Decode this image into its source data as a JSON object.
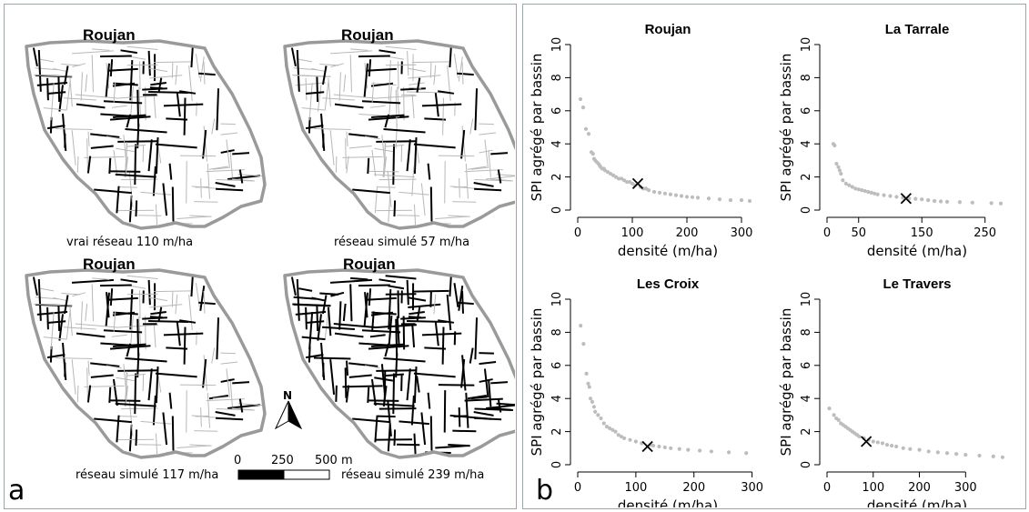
{
  "figure": {
    "panel_a_letter": "a",
    "panel_b_letter": "b",
    "maps": [
      {
        "title": "Roujan",
        "caption": "vrai réseau 110 m/ha",
        "density": 110
      },
      {
        "title": "Roujan",
        "caption": "réseau simulé 57 m/ha",
        "density": 57
      },
      {
        "title": "Roujan",
        "caption": "réseau simulé 117 m/ha",
        "density": 117
      },
      {
        "title": "Roujan",
        "caption": "réseau simulé 239 m/ha",
        "density": 239
      }
    ],
    "north_label": "N",
    "scale_bar": {
      "labels": [
        "0",
        "250",
        "500 m"
      ]
    }
  },
  "colors": {
    "parcel_outline": "#b8b8b8",
    "network": "#000000",
    "scatter_point": "#bdbdbd",
    "panel_border": "#9aa6a8"
  },
  "chart_data": [
    {
      "type": "scatter",
      "title": "Roujan",
      "xlabel": "densité (m/ha)",
      "ylabel": "SPI agrégé par bassin",
      "xlim": [
        0,
        330
      ],
      "ylim": [
        0,
        10
      ],
      "xticks": [
        0,
        100,
        200,
        300
      ],
      "yticks": [
        0,
        2,
        4,
        6,
        8,
        10
      ],
      "grid": false,
      "x": [
        5,
        10,
        15,
        20,
        25,
        28,
        30,
        32,
        35,
        38,
        40,
        42,
        45,
        48,
        50,
        55,
        60,
        65,
        70,
        75,
        80,
        85,
        90,
        95,
        100,
        105,
        115,
        120,
        125,
        130,
        140,
        150,
        160,
        170,
        180,
        190,
        200,
        210,
        220,
        240,
        260,
        280,
        300,
        315
      ],
      "y": [
        6.7,
        6.2,
        4.9,
        4.6,
        3.5,
        3.4,
        3.1,
        3.0,
        2.9,
        2.8,
        2.7,
        2.6,
        2.5,
        2.5,
        2.4,
        2.3,
        2.2,
        2.1,
        2.0,
        1.9,
        1.9,
        1.8,
        1.7,
        1.7,
        1.6,
        1.5,
        1.4,
        1.3,
        1.3,
        1.2,
        1.1,
        1.05,
        1.0,
        0.95,
        0.9,
        0.85,
        0.8,
        0.78,
        0.75,
        0.7,
        0.65,
        0.6,
        0.6,
        0.55
      ],
      "marker": {
        "x": 110,
        "y": 1.6
      }
    },
    {
      "type": "scatter",
      "title": "La Tarrale",
      "xlabel": "densité (m/ha)",
      "ylabel": "SPI agrégé par bassin",
      "xlim": [
        0,
        285
      ],
      "ylim": [
        0,
        10
      ],
      "xticks": [
        0,
        50,
        150,
        250
      ],
      "yticks": [
        0,
        2,
        4,
        6,
        8,
        10
      ],
      "grid": false,
      "x": [
        10,
        12,
        15,
        18,
        20,
        22,
        25,
        30,
        35,
        40,
        45,
        50,
        55,
        60,
        65,
        70,
        75,
        80,
        90,
        100,
        110,
        120,
        130,
        140,
        150,
        160,
        170,
        180,
        190,
        210,
        230,
        260,
        275
      ],
      "y": [
        4.0,
        3.9,
        2.8,
        2.6,
        2.4,
        2.2,
        1.8,
        1.6,
        1.5,
        1.4,
        1.3,
        1.25,
        1.2,
        1.15,
        1.1,
        1.05,
        1.0,
        0.95,
        0.9,
        0.85,
        0.8,
        0.75,
        0.7,
        0.68,
        0.65,
        0.6,
        0.55,
        0.52,
        0.5,
        0.48,
        0.45,
        0.42,
        0.4
      ],
      "marker": {
        "x": 125,
        "y": 0.7
      }
    },
    {
      "type": "scatter",
      "title": "Les Croix",
      "xlabel": "densité (m/ha)",
      "ylabel": "SPI agrégé par bassin",
      "xlim": [
        0,
        310
      ],
      "ylim": [
        0,
        10
      ],
      "xticks": [
        0,
        100,
        200,
        300
      ],
      "yticks": [
        0,
        2,
        4,
        6,
        8,
        10
      ],
      "grid": false,
      "x": [
        5,
        10,
        15,
        18,
        20,
        22,
        25,
        28,
        30,
        35,
        40,
        45,
        50,
        55,
        60,
        65,
        70,
        75,
        80,
        90,
        100,
        110,
        125,
        130,
        140,
        150,
        160,
        175,
        190,
        210,
        230,
        260,
        290
      ],
      "y": [
        8.4,
        7.3,
        5.5,
        4.9,
        4.7,
        4.0,
        3.8,
        3.5,
        3.2,
        3.0,
        2.8,
        2.5,
        2.3,
        2.2,
        2.1,
        2.0,
        1.8,
        1.7,
        1.6,
        1.5,
        1.4,
        1.3,
        1.2,
        1.15,
        1.1,
        1.05,
        1.0,
        0.95,
        0.9,
        0.85,
        0.8,
        0.75,
        0.7
      ],
      "marker": {
        "x": 120,
        "y": 1.1
      }
    },
    {
      "type": "scatter",
      "title": "Le Travers",
      "xlabel": "densité (m/ha)",
      "ylabel": "SPI agrégé par bassin",
      "xlim": [
        0,
        390
      ],
      "ylim": [
        0,
        10
      ],
      "xticks": [
        0,
        100,
        200,
        300
      ],
      "yticks": [
        0,
        2,
        4,
        6,
        8,
        10
      ],
      "grid": false,
      "x": [
        5,
        15,
        20,
        25,
        30,
        35,
        40,
        45,
        50,
        55,
        60,
        65,
        70,
        80,
        90,
        100,
        110,
        120,
        130,
        140,
        150,
        165,
        180,
        200,
        220,
        240,
        260,
        280,
        300,
        330,
        360,
        380
      ],
      "y": [
        3.4,
        3.0,
        2.8,
        2.7,
        2.5,
        2.4,
        2.3,
        2.2,
        2.1,
        2.0,
        1.9,
        1.8,
        1.7,
        1.6,
        1.5,
        1.4,
        1.35,
        1.3,
        1.2,
        1.15,
        1.1,
        1.0,
        0.95,
        0.9,
        0.8,
        0.75,
        0.7,
        0.65,
        0.6,
        0.55,
        0.5,
        0.45
      ],
      "marker": {
        "x": 85,
        "y": 1.4
      }
    }
  ]
}
